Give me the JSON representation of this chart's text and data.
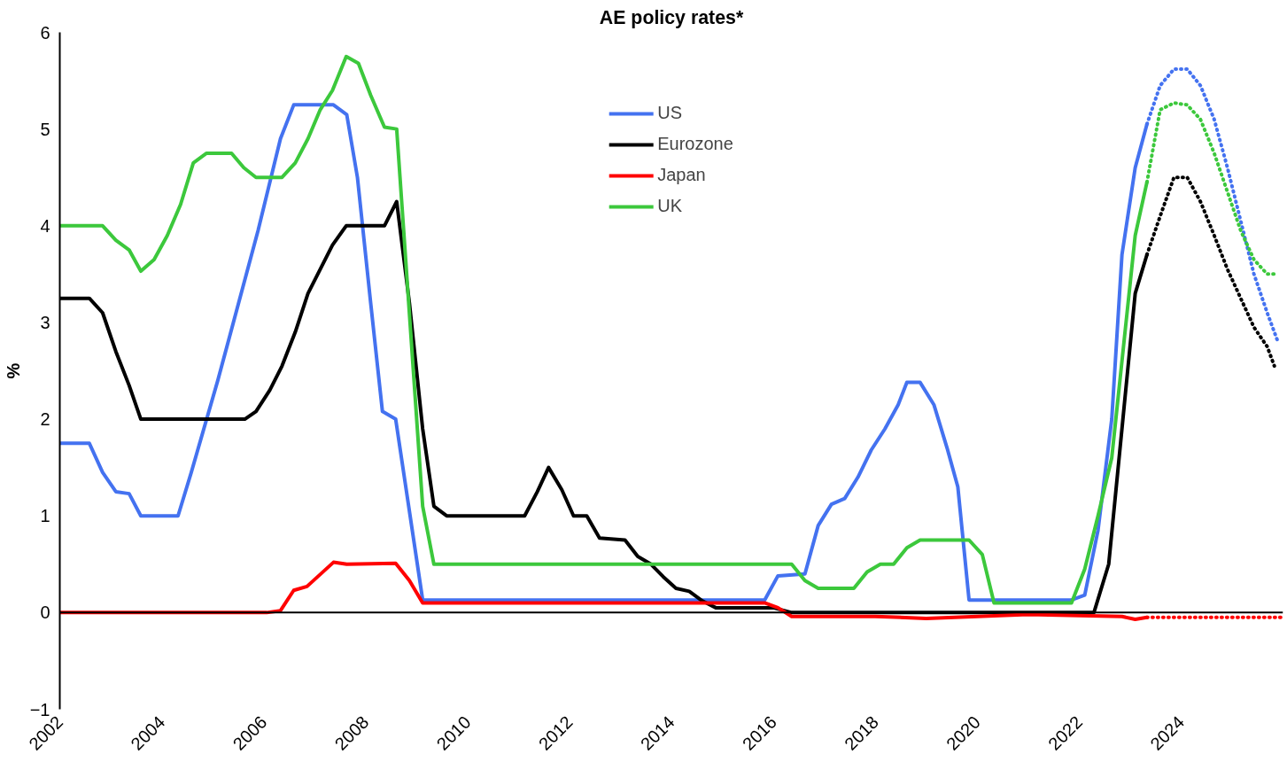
{
  "chart_data": {
    "type": "line",
    "title": "AE policy rates*",
    "ylabel": "%",
    "xlim": [
      2002,
      2026
    ],
    "xticks": [
      2002,
      2004,
      2006,
      2008,
      2010,
      2012,
      2014,
      2016,
      2018,
      2020,
      2022,
      2024
    ],
    "ylim": [
      -1,
      6
    ],
    "yticks": [
      -1,
      0,
      1,
      2,
      3,
      4,
      5,
      6
    ],
    "grid": false,
    "legend": "top",
    "marker": "none",
    "ref_lines": [
      {
        "axis": "y",
        "value": 0,
        "color": "#000000"
      }
    ],
    "series": [
      {
        "name": "US",
        "color": "#4472f0",
        "line_style": "solid",
        "x": [
          2002,
          2002.58,
          2002.84,
          2003.1,
          2003.36,
          2003.59,
          2004.32,
          2004.58,
          2005.1,
          2005.89,
          2006.33,
          2006.59,
          2007.37,
          2007.63,
          2007.84,
          2008.1,
          2008.33,
          2008.59,
          2009.12,
          2015.83,
          2016.09,
          2016.62,
          2016.88,
          2017.14,
          2017.4,
          2017.66,
          2017.92,
          2018.19,
          2018.45,
          2018.62,
          2018.88,
          2019.15,
          2019.41,
          2019.62,
          2019.84,
          2021.85,
          2022.11,
          2022.37,
          2022.64,
          2022.84,
          2023.1,
          2023.33
        ],
        "values": [
          1.75,
          1.75,
          1.45,
          1.25,
          1.23,
          1.0,
          1.0,
          1.45,
          2.4,
          3.95,
          4.9,
          5.25,
          5.25,
          5.15,
          4.5,
          3.2,
          2.08,
          2.0,
          0.13,
          0.13,
          0.38,
          0.4,
          0.9,
          1.12,
          1.18,
          1.4,
          1.68,
          1.9,
          2.15,
          2.38,
          2.38,
          2.15,
          1.7,
          1.3,
          0.13,
          0.13,
          0.18,
          0.85,
          2.0,
          3.7,
          4.6,
          5.05
        ]
      },
      {
        "name": "Eurozone",
        "color": "#000000",
        "line_style": "solid",
        "x": [
          2002,
          2002.58,
          2002.84,
          2003.1,
          2003.36,
          2003.59,
          2005.63,
          2005.85,
          2006.12,
          2006.36,
          2006.62,
          2006.87,
          2007.11,
          2007.35,
          2007.62,
          2008.37,
          2008.61,
          2008.86,
          2009.12,
          2009.34,
          2009.59,
          2011.12,
          2011.37,
          2011.59,
          2011.85,
          2012.08,
          2012.34,
          2012.59,
          2013.09,
          2013.34,
          2013.6,
          2013.84,
          2014.09,
          2014.35,
          2014.61,
          2014.87,
          2016.0,
          2016.36,
          2022.29,
          2022.58,
          2022.84,
          2023.1,
          2023.33
        ],
        "values": [
          3.25,
          3.25,
          3.1,
          2.7,
          2.35,
          2.0,
          2.0,
          2.08,
          2.3,
          2.55,
          2.9,
          3.3,
          3.55,
          3.8,
          4.0,
          4.0,
          4.25,
          3.2,
          1.9,
          1.1,
          1.0,
          1.0,
          1.25,
          1.5,
          1.27,
          1.0,
          1.0,
          0.77,
          0.75,
          0.58,
          0.5,
          0.37,
          0.25,
          0.22,
          0.12,
          0.05,
          0.05,
          0.0,
          0.0,
          0.5,
          1.9,
          3.3,
          3.7
        ]
      },
      {
        "name": "Japan",
        "color": "#ff0000",
        "line_style": "solid",
        "x": [
          2002,
          2006.06,
          2006.33,
          2006.59,
          2006.85,
          2007.37,
          2007.63,
          2008.59,
          2008.86,
          2009.12,
          2015.83,
          2016.09,
          2016.36,
          2018.0,
          2019.0,
          2020.0,
          2021.0,
          2022.0,
          2022.84,
          2023.1,
          2023.33
        ],
        "values": [
          0.0,
          0.0,
          0.02,
          0.23,
          0.27,
          0.52,
          0.5,
          0.51,
          0.33,
          0.1,
          0.1,
          0.05,
          -0.04,
          -0.04,
          -0.06,
          -0.04,
          -0.02,
          -0.03,
          -0.04,
          -0.07,
          -0.05
        ]
      },
      {
        "name": "UK",
        "color": "#3cc83c",
        "line_style": "solid",
        "x": [
          2002,
          2002.84,
          2003.1,
          2003.36,
          2003.59,
          2003.85,
          2004.11,
          2004.37,
          2004.62,
          2004.88,
          2005.37,
          2005.61,
          2005.85,
          2006.36,
          2006.62,
          2006.87,
          2007.11,
          2007.35,
          2007.62,
          2007.86,
          2008.1,
          2008.37,
          2008.61,
          2009.12,
          2009.34,
          2016.36,
          2016.62,
          2016.88,
          2017.58,
          2017.84,
          2018.1,
          2018.36,
          2018.62,
          2018.88,
          2019.84,
          2020.1,
          2020.33,
          2021.85,
          2022.11,
          2022.37,
          2022.64,
          2022.84,
          2023.1,
          2023.33
        ],
        "values": [
          4.0,
          4.0,
          3.85,
          3.75,
          3.53,
          3.65,
          3.9,
          4.22,
          4.65,
          4.75,
          4.75,
          4.6,
          4.5,
          4.5,
          4.65,
          4.9,
          5.2,
          5.4,
          5.75,
          5.68,
          5.35,
          5.02,
          5.0,
          1.1,
          0.5,
          0.5,
          0.33,
          0.25,
          0.25,
          0.42,
          0.5,
          0.5,
          0.67,
          0.75,
          0.75,
          0.6,
          0.1,
          0.1,
          0.45,
          1.0,
          1.6,
          2.6,
          3.9,
          4.45
        ]
      },
      {
        "color": "#4472f0",
        "line_style": "dotted",
        "x": [
          2023.33,
          2023.59,
          2023.86,
          2024.12,
          2024.38,
          2024.65,
          2024.91,
          2025.17,
          2025.43,
          2025.69,
          2025.9
        ],
        "values": [
          5.05,
          5.45,
          5.62,
          5.62,
          5.45,
          5.1,
          4.6,
          4.05,
          3.5,
          3.1,
          2.8
        ]
      },
      {
        "color": "#000000",
        "line_style": "dotted",
        "x": [
          2023.33,
          2023.59,
          2023.86,
          2024.12,
          2024.38,
          2024.65,
          2024.91,
          2025.17,
          2025.43,
          2025.69,
          2025.83
        ],
        "values": [
          3.7,
          4.1,
          4.5,
          4.5,
          4.25,
          3.9,
          3.55,
          3.25,
          2.95,
          2.75,
          2.55
        ]
      },
      {
        "color": "#ff0000",
        "line_style": "dotted",
        "x": [
          2023.33,
          2026.0
        ],
        "values": [
          -0.05,
          -0.05
        ]
      },
      {
        "color": "#3cc83c",
        "line_style": "dotted",
        "x": [
          2023.33,
          2023.59,
          2023.86,
          2024.12,
          2024.38,
          2024.65,
          2024.91,
          2025.17,
          2025.43,
          2025.69,
          2025.9
        ],
        "values": [
          4.45,
          5.2,
          5.27,
          5.25,
          5.1,
          4.75,
          4.35,
          3.95,
          3.65,
          3.5,
          3.5
        ]
      }
    ]
  }
}
